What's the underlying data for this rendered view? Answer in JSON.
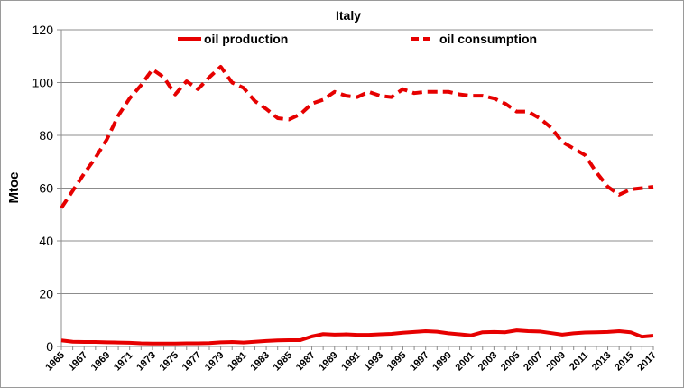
{
  "chart_data": {
    "type": "line",
    "title": "Italy",
    "ylabel": "Mtoe",
    "xlabel": "",
    "ylim": [
      0,
      120
    ],
    "yticks": [
      0,
      20,
      40,
      60,
      80,
      100,
      120
    ],
    "xlim": [
      1965,
      2017
    ],
    "xticks": [
      1965,
      1967,
      1969,
      1971,
      1973,
      1975,
      1977,
      1979,
      1981,
      1983,
      1985,
      1987,
      1989,
      1991,
      1993,
      1995,
      1997,
      1999,
      2001,
      2003,
      2005,
      2007,
      2009,
      2011,
      2013,
      2015,
      2017
    ],
    "grid": true,
    "legend_position": "top",
    "x": [
      1965,
      1966,
      1967,
      1968,
      1969,
      1970,
      1971,
      1972,
      1973,
      1974,
      1975,
      1976,
      1977,
      1978,
      1979,
      1980,
      1981,
      1982,
      1983,
      1984,
      1985,
      1986,
      1987,
      1988,
      1989,
      1990,
      1991,
      1992,
      1993,
      1994,
      1995,
      1996,
      1997,
      1998,
      1999,
      2000,
      2001,
      2002,
      2003,
      2004,
      2005,
      2006,
      2007,
      2008,
      2009,
      2010,
      2011,
      2012,
      2013,
      2014,
      2015,
      2016,
      2017
    ],
    "series": [
      {
        "name": "oil production",
        "style": "solid",
        "color": "#e60000",
        "values": [
          2.3,
          1.8,
          1.7,
          1.7,
          1.6,
          1.5,
          1.4,
          1.2,
          1.1,
          1.1,
          1.1,
          1.2,
          1.2,
          1.3,
          1.6,
          1.7,
          1.5,
          1.8,
          2.1,
          2.3,
          2.4,
          2.4,
          3.8,
          4.7,
          4.5,
          4.6,
          4.4,
          4.4,
          4.6,
          4.8,
          5.2,
          5.5,
          5.8,
          5.6,
          5.0,
          4.6,
          4.2,
          5.4,
          5.5,
          5.4,
          6.1,
          5.8,
          5.7,
          5.1,
          4.5,
          5.0,
          5.3,
          5.4,
          5.5,
          5.8,
          5.4,
          3.7,
          4.1
        ]
      },
      {
        "name": "oil consumption",
        "style": "dashed",
        "color": "#e60000",
        "values": [
          52.5,
          59,
          65.5,
          71.5,
          78.5,
          87.5,
          94,
          99,
          105,
          102,
          95.5,
          100.5,
          97.5,
          102,
          106,
          100,
          98,
          93,
          90,
          86.5,
          86,
          88,
          92,
          93.5,
          96.5,
          95,
          94.5,
          96.5,
          95,
          94.5,
          97.5,
          96,
          96.5,
          96.5,
          96.5,
          95.5,
          95,
          95,
          94,
          92,
          89,
          89,
          86.5,
          83,
          77.5,
          75,
          72.5,
          66,
          60.5,
          57.5,
          59.5,
          60,
          60.5
        ]
      }
    ]
  }
}
